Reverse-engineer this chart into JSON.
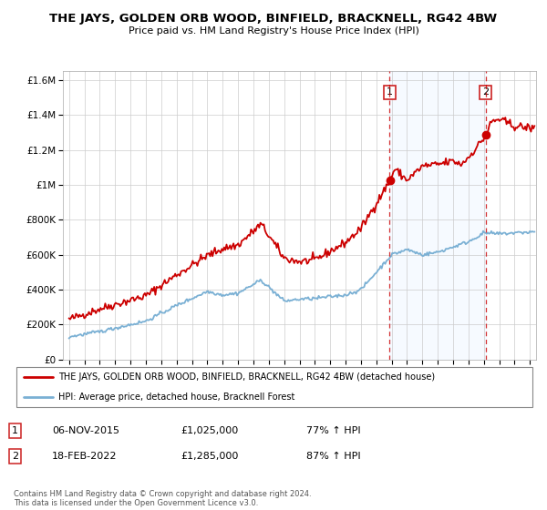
{
  "title": "THE JAYS, GOLDEN ORB WOOD, BINFIELD, BRACKNELL, RG42 4BW",
  "subtitle": "Price paid vs. HM Land Registry's House Price Index (HPI)",
  "legend_line1": "THE JAYS, GOLDEN ORB WOOD, BINFIELD, BRACKNELL, RG42 4BW (detached house)",
  "legend_line2": "HPI: Average price, detached house, Bracknell Forest",
  "transaction1_date": "06-NOV-2015",
  "transaction1_price": "£1,025,000",
  "transaction1_hpi": "77% ↑ HPI",
  "transaction2_date": "18-FEB-2022",
  "transaction2_price": "£1,285,000",
  "transaction2_hpi": "87% ↑ HPI",
  "copyright": "Contains HM Land Registry data © Crown copyright and database right 2024.\nThis data is licensed under the Open Government Licence v3.0.",
  "red_color": "#cc0000",
  "blue_color": "#7ab0d4",
  "shade_color": "#ddeeff",
  "marker1_x": 2015.87,
  "marker2_x": 2022.12,
  "marker1_y": 1025000,
  "marker2_y": 1285000,
  "ylim": [
    0,
    1650000
  ],
  "xlim_start": 1994.6,
  "xlim_end": 2025.4
}
